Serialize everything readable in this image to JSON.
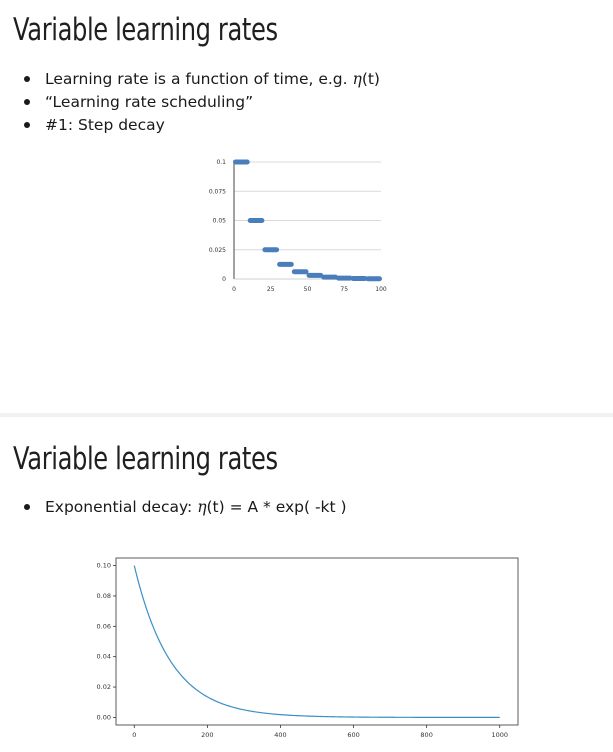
{
  "slides": [
    {
      "title": "Variable learning rates",
      "bullets": [
        {
          "pre": "Learning rate is a function of time, e.g. ",
          "eta": "η",
          "post": "(t)"
        },
        {
          "pre": "“Learning rate scheduling”",
          "eta": "",
          "post": ""
        },
        {
          "pre": "#1: Step decay",
          "eta": "",
          "post": ""
        }
      ]
    },
    {
      "title": "Variable learning rates",
      "bullets": [
        {
          "pre": "Exponential decay: ",
          "eta": "η",
          "post": "(t) = A * exp( -kt )"
        }
      ]
    }
  ],
  "chart_data": [
    {
      "type": "scatter",
      "title": "",
      "xlabel": "",
      "ylabel": "",
      "xlim": [
        0,
        100
      ],
      "ylim": [
        0,
        0.1
      ],
      "xticks": [
        "0",
        "25",
        "50",
        "75",
        "100"
      ],
      "yticks": [
        "0",
        "0.025",
        "0.05",
        "0.075",
        "0.1"
      ],
      "grid": "horizontal",
      "color": "#4a7ebb",
      "series": [
        {
          "segments": [
            {
              "x": [
                0,
                10
              ],
              "y": 0.1
            },
            {
              "x": [
                10,
                20
              ],
              "y": 0.05
            },
            {
              "x": [
                20,
                30
              ],
              "y": 0.025
            },
            {
              "x": [
                30,
                40
              ],
              "y": 0.0125
            },
            {
              "x": [
                40,
                50
              ],
              "y": 0.00625
            },
            {
              "x": [
                50,
                60
              ],
              "y": 0.003125
            },
            {
              "x": [
                60,
                70
              ],
              "y": 0.0015625
            },
            {
              "x": [
                70,
                80
              ],
              "y": 0.00078125
            },
            {
              "x": [
                80,
                90
              ],
              "y": 0.000390625
            },
            {
              "x": [
                90,
                100
              ],
              "y": 0.0001953125
            }
          ]
        }
      ]
    },
    {
      "type": "line",
      "title": "",
      "xlabel": "",
      "ylabel": "",
      "xlim": [
        -50,
        1050
      ],
      "ylim": [
        -0.005,
        0.105
      ],
      "xticks": [
        0,
        200,
        400,
        600,
        800,
        1000
      ],
      "xtick_labels": [
        "0",
        "200",
        "400",
        "600",
        "800",
        "1000"
      ],
      "yticks": [
        0,
        0.02,
        0.04,
        0.06,
        0.08,
        0.1
      ],
      "ytick_labels": [
        "0.00",
        "0.02",
        "0.04",
        "0.06",
        "0.08",
        "0.10"
      ],
      "grid": false,
      "color": "#3a8fc4",
      "series": [
        {
          "function": "A * exp(-k t)",
          "A": 0.1,
          "k": 0.01,
          "x": [
            0,
            1000
          ]
        }
      ]
    }
  ]
}
